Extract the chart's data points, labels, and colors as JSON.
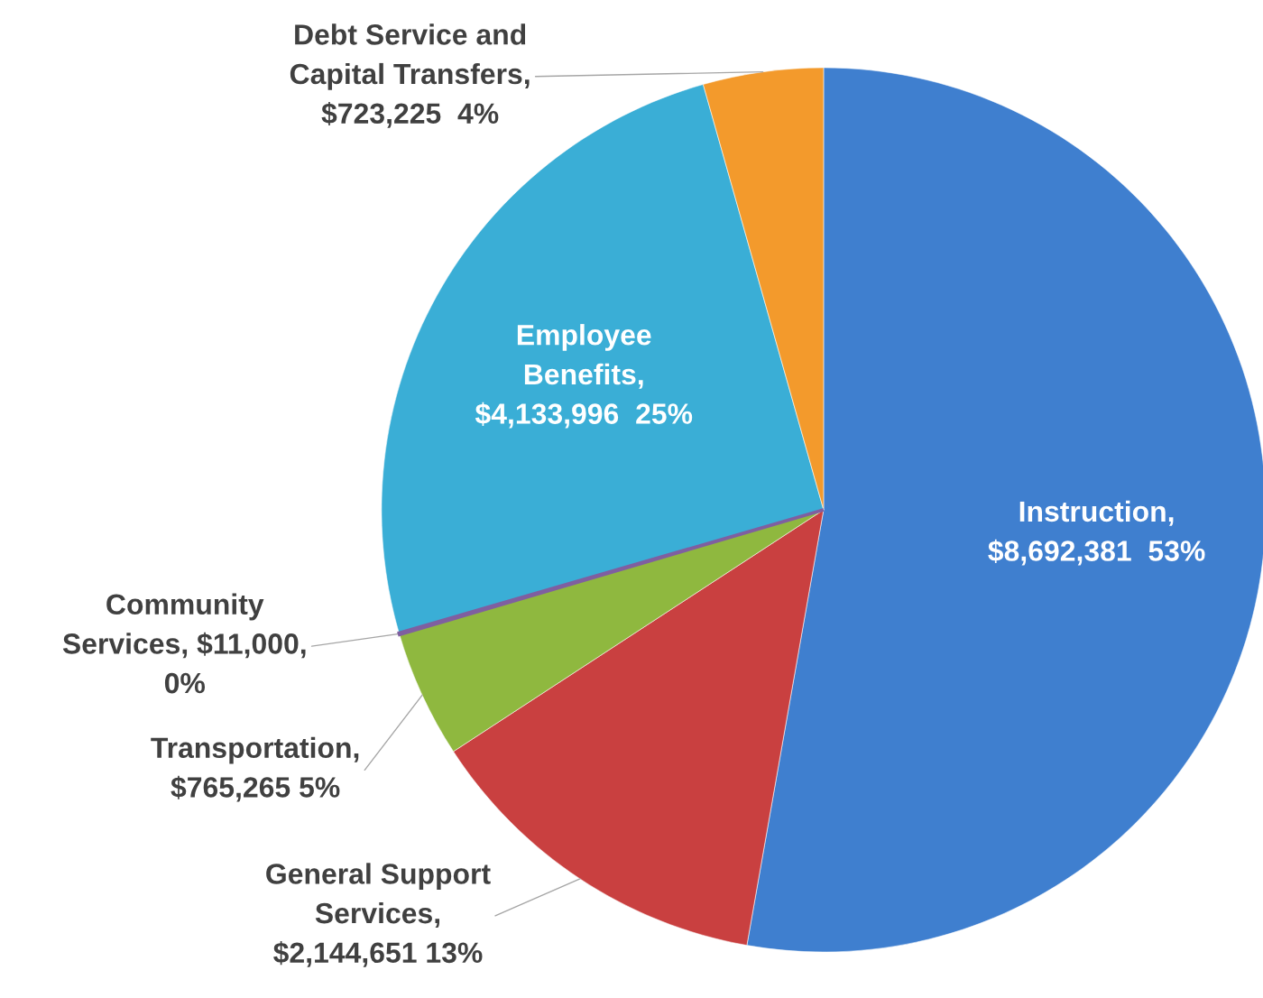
{
  "chart_data": {
    "type": "pie",
    "categories": [
      "Instruction,\n$8,692,381  53%",
      "General Support\nServices,\n$2,144,651 13%",
      "Transportation,\n$765,265 5%",
      "Community\nServices, $11,000,\n0%",
      "Employee\nBenefits,\n$4,133,996  25%",
      "Debt Service and\nCapital Transfers,\n$723,225  4%"
    ],
    "values": [
      8692381,
      2144651,
      765265,
      11000,
      4133996,
      723225
    ],
    "colors": [
      "#3f7fcf",
      "#c94040",
      "#8fb83f",
      "#7f5fa0",
      "#3aaed6",
      "#f39a2c"
    ]
  }
}
